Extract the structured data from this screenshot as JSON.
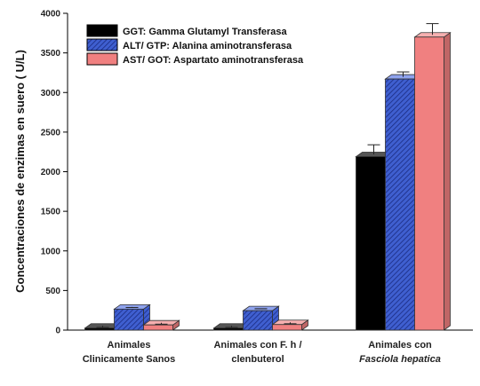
{
  "chart_data": {
    "type": "bar",
    "title": "",
    "ylabel": "Concentraciones de enzimas en suero ( U/L)",
    "xlabel": "",
    "ylim": [
      0,
      4000
    ],
    "yticks": [
      0,
      500,
      1000,
      1500,
      2000,
      2500,
      3000,
      3500,
      4000
    ],
    "categories": [
      {
        "line1": "Animales",
        "line2": "Clinicamente Sanos",
        "line2_italic": false
      },
      {
        "line1": "Animales con F. h /",
        "line2": "clenbuterol",
        "line2_italic": false
      },
      {
        "line1": "Animales con",
        "line2": "Fasciola hepatica",
        "line2_italic": true
      }
    ],
    "legend_position": "top-left",
    "grid": false,
    "series": [
      {
        "name": "GGT: Gamma Glutamyl Transferasa",
        "color": "#000000",
        "pattern": "solid",
        "values": [
          25,
          25,
          2190
        ],
        "errors": [
          8,
          8,
          150
        ]
      },
      {
        "name": "ALT/ GTP: Alanina aminotransferasa",
        "color": "#3f5fd0",
        "pattern": "hatch",
        "values": [
          265,
          245,
          3170
        ],
        "errors": [
          20,
          25,
          90
        ]
      },
      {
        "name": "AST/ GOT: Aspartato aminotransferasa",
        "color": "#f08080",
        "pattern": "solid",
        "values": [
          65,
          70,
          3700
        ],
        "errors": [
          10,
          10,
          170
        ]
      }
    ]
  }
}
